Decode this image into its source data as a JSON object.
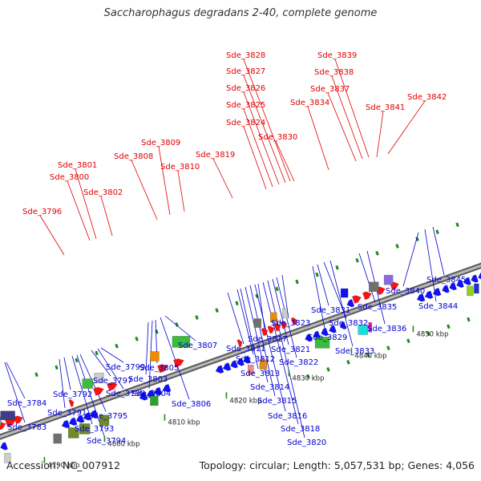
{
  "title": "Saccharophagus degradans 2-40, complete genome",
  "footer": {
    "accession": "Accession: NC_007912",
    "info": "Topology: circular; Length: 5,057,531 bp; Genes: 4,056"
  },
  "colors": {
    "plus_strand_label": "#e00000",
    "minus_strand_label": "#0000d0",
    "plus_gene": "#ff0000",
    "minus_gene": "#0000ff",
    "backbone": "#9a9a9a"
  },
  "scale_ticks": [
    {
      "label": "4790 kbp"
    },
    {
      "label": "4800 kbp"
    },
    {
      "label": "4810 kbp"
    },
    {
      "label": "4820 kbp"
    },
    {
      "label": "4830 kbp"
    },
    {
      "label": "4840 kbp"
    },
    {
      "label": "4850 kbp"
    }
  ],
  "upper_labels": [
    "Sde_3796",
    "Sde_3800",
    "Sde_3801",
    "Sde_3802",
    "Sde_3808",
    "Sde_3809",
    "Sde_3810",
    "Sde_3819",
    "Sde_3824",
    "Sde_3825",
    "Sde_3826",
    "Sde_3827",
    "Sde_3828",
    "Sde_3830",
    "Sde_3834",
    "Sde_3837",
    "Sde_3838",
    "Sde_3839",
    "Sde_3841",
    "Sde_3842"
  ],
  "lower_labels": [
    "Sde_3783",
    "Sde_3784",
    "Sde_3791",
    "Sde_3792",
    "Sde_3793",
    "Sde_3794",
    "Sde_3795",
    "Sde_3797",
    "Sde_3798",
    "Sde_3799",
    "Sde_3803",
    "Sde_3804",
    "Sde_3805",
    "Sde_3806",
    "Sde_3807",
    "Sde_3811",
    "Sde_3812",
    "Sde_3813",
    "Sde_3814",
    "Sde_3815",
    "Sde_3816",
    "Sde_3817",
    "Sde_3818",
    "Sde_3820",
    "Sde_3821",
    "Sde_3822",
    "Sde_3823",
    "Sde_3829",
    "Sde_3831",
    "Sde_3832",
    "Sde_3833",
    "Sde_3835",
    "Sde_3836",
    "Sde_3840",
    "Sde_3844",
    "Sde_3845"
  ]
}
